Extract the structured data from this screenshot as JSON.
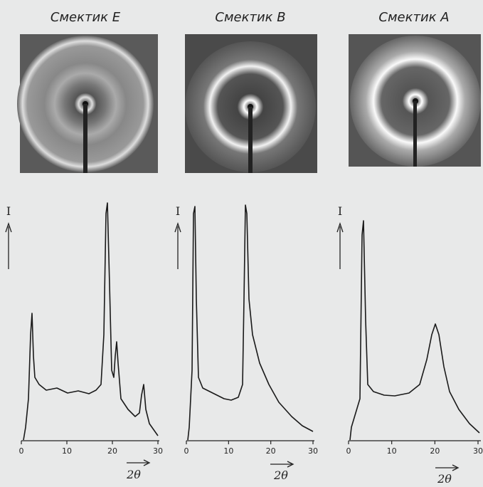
{
  "panels": [
    {
      "title": "Смектик E",
      "y_label": "I",
      "x_label": "2θ",
      "xticks": [
        0,
        10,
        20,
        30
      ]
    },
    {
      "title": "Смектик B",
      "y_label": "I",
      "x_label": "2θ",
      "xticks": [
        0,
        10,
        20,
        30
      ]
    },
    {
      "title": "Смектик A",
      "y_label": "I",
      "x_label": "2θ",
      "xticks": [
        0,
        10,
        20,
        30
      ]
    }
  ]
}
